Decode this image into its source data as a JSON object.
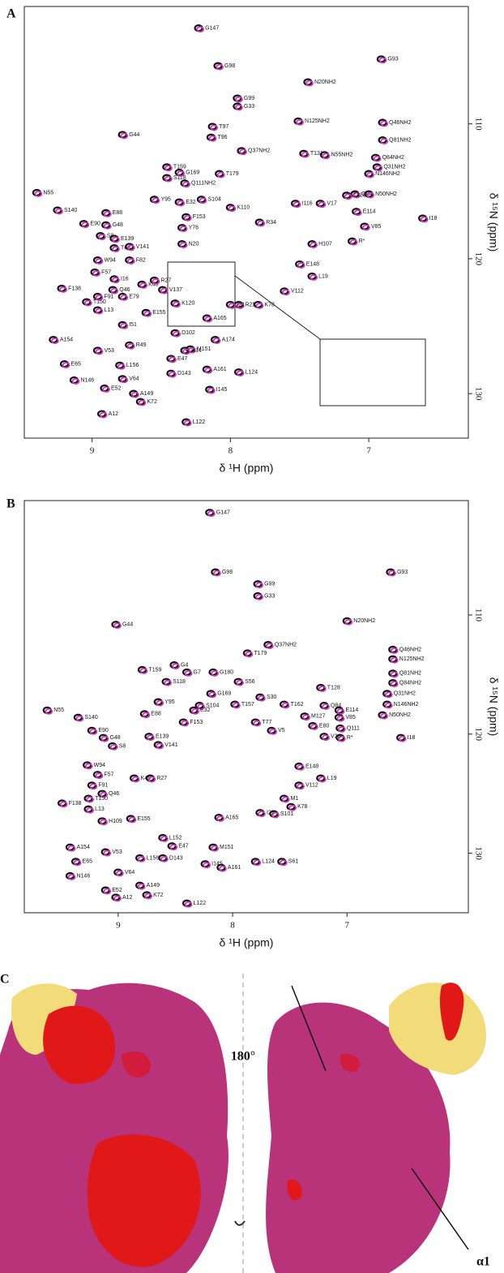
{
  "chart_data": [
    {
      "type": "scatter",
      "panel": "A",
      "x_label": "δ ¹H (ppm)",
      "y_label": "δ ¹⁵N (ppm)",
      "xlim": [
        9.49,
        6.28
      ],
      "ylim": [
        101.3,
        133.3
      ],
      "xticks": [
        9,
        8,
        7
      ],
      "yticks": [
        110,
        120,
        130
      ],
      "colors": [
        "#111111",
        "#cc33bb"
      ],
      "x": [
        8.23,
        8.09,
        6.91,
        7.95,
        7.95,
        8.78,
        9.25,
        9.4,
        9.06,
        8.9,
        8.94,
        8.96,
        8.98,
        9.22,
        9.04,
        8.96,
        9.28,
        9.2,
        9.13,
        8.96,
        8.91,
        8.93,
        8.65,
        8.7,
        8.43,
        8.15,
        8.32,
        7.94,
        8.17,
        8.29,
        8.17,
        7.12,
        6.61,
        7.03,
        7.09,
        7.1,
        7.16,
        8.46,
        8.46,
        7.92,
        7.47,
        6.9,
        6.9,
        7.44,
        7.51,
        7.32,
        6.95,
        6.94,
        7.0,
        7.0,
        7.41,
        7.61,
        7.8,
        7.94,
        8.0,
        7.5,
        7.41,
        7.79,
        7.53,
        7.35,
        8.84,
        8.35,
        8.32,
        8.35,
        8.0,
        8.21,
        8.33,
        8.37,
        8.08,
        8.14,
        8.13,
        8.43,
        8.33,
        8.11,
        8.4,
        8.61,
        8.8,
        8.78,
        8.78,
        8.73,
        8.49,
        8.4,
        8.73,
        8.84,
        8.85,
        8.78,
        8.64,
        8.55,
        8.96,
        8.84,
        8.73,
        8.9,
        8.55,
        8.37
      ],
      "values": [
        102.9,
        105.7,
        105.2,
        108.1,
        108.7,
        110.8,
        116.4,
        115.1,
        117.4,
        117.5,
        118.3,
        120.1,
        121.0,
        122.2,
        123.2,
        123.8,
        126.0,
        127.8,
        129.0,
        126.8,
        129.6,
        131.5,
        130.6,
        130.0,
        128.5,
        129.7,
        132.1,
        128.4,
        128.2,
        126.7,
        124.4,
        118.7,
        117.0,
        117.6,
        116.5,
        115.2,
        115.3,
        113.2,
        114.0,
        112.0,
        112.2,
        109.9,
        111.2,
        106.9,
        109.8,
        112.3,
        112.5,
        113.2,
        113.7,
        115.2,
        121.3,
        122.4,
        123.4,
        123.4,
        123.4,
        120.4,
        118.9,
        117.3,
        115.9,
        115.9,
        118.5,
        118.9,
        116.9,
        117.7,
        116.2,
        115.6,
        114.4,
        113.6,
        113.7,
        111.0,
        110.2,
        127.4,
        126.8,
        126.0,
        125.5,
        124.0,
        127.9,
        128.9,
        124.9,
        126.4,
        122.3,
        123.3,
        120.1,
        121.5,
        122.3,
        122.8,
        121.9,
        121.6,
        122.8,
        119.2,
        119.1,
        116.6,
        115.6,
        115.8
      ],
      "point_labels": [
        "G147",
        "G98",
        "G93",
        "G99",
        "G33",
        "G44",
        "S140",
        "N55",
        "E90",
        "G48",
        "S8",
        "W94",
        "F57",
        "F138",
        "T150",
        "L13",
        "A154",
        "E65",
        "N146",
        "V53",
        "E52",
        "A12",
        "K72",
        "A149",
        "D143",
        "I145",
        "L122",
        "L124",
        "A161",
        "M151",
        "A165",
        "R*",
        "I18",
        "V85",
        "E114",
        "Q84",
        "T128",
        "T159",
        "S118",
        "Q37NH2",
        "T131",
        "Q46NH2",
        "Q81NH2",
        "N20NH2",
        "N125NH2",
        "N55NH2",
        "Q84NH2",
        "Q31NH2",
        "N146NH2",
        "N50NH2",
        "L19",
        "V112",
        "K78",
        "R29",
        "I21",
        "E148",
        "H107",
        "R34",
        "I116",
        "V17",
        "E139",
        "N20",
        "F153",
        "Y76",
        "K110",
        "S104",
        "Q111NH2",
        "G169",
        "T179",
        "T96",
        "T97",
        "E47",
        "H14",
        "A174",
        "D102",
        "E155",
        "L156",
        "V64",
        "I51",
        "R49",
        "V137",
        "K120",
        "F82",
        "I16",
        "Q46",
        "E79",
        "K45",
        "R27",
        "F91",
        "T63",
        "V141",
        "E88",
        "Y95",
        "E32"
      ]
    },
    {
      "type": "scatter",
      "panel": "B",
      "x_label": "δ ¹H (ppm)",
      "y_label": "δ ¹⁵N (ppm)",
      "xlim": [
        9.82,
        5.94
      ],
      "ylim": [
        100.4,
        135.0
      ],
      "xticks": [
        9,
        8,
        7
      ],
      "yticks": [
        110,
        120,
        130
      ],
      "colors": [
        "#111111",
        "#cc33bb"
      ],
      "x": [
        8.2,
        8.15,
        6.62,
        7.78,
        7.78,
        7.0,
        9.02,
        6.6,
        6.6,
        7.69,
        6.6,
        6.6,
        6.65,
        6.65,
        6.69,
        7.87,
        8.79,
        8.58,
        9.62,
        9.35,
        9.23,
        9.13,
        9.05,
        8.77,
        8.73,
        9.27,
        9.18,
        9.49,
        9.26,
        9.26,
        9.14,
        9.42,
        9.37,
        9.11,
        9.42,
        9.11,
        8.81,
        9.02,
        8.75,
        8.4,
        8.24,
        8.1,
        7.8,
        8.17,
        8.61,
        8.53,
        8.81,
        7.57,
        7.64,
        7.49,
        7.42,
        7.42,
        7.23,
        7.06,
        6.53,
        7.07,
        7.07,
        7.06,
        7.23,
        7.2,
        7.76,
        8.12,
        8.51,
        8.4,
        8.17,
        7.95,
        8.29,
        7.98,
        7.76,
        7.55,
        7.66,
        7.8,
        7.37,
        7.3,
        7.2,
        7.55,
        9.14,
        9.23,
        8.86,
        8.72,
        8.65,
        8.43,
        8.65,
        8.89,
        8.61,
        9.0,
        8.19,
        8.34
      ],
      "values": [
        101.4,
        106.4,
        106.4,
        107.4,
        108.4,
        110.5,
        110.8,
        112.9,
        113.7,
        112.5,
        114.9,
        115.7,
        116.6,
        117.5,
        118.4,
        113.2,
        114.6,
        115.6,
        118.0,
        118.6,
        119.7,
        120.3,
        121.0,
        118.3,
        120.2,
        122.6,
        123.4,
        125.8,
        125.4,
        126.3,
        127.3,
        129.5,
        130.7,
        129.9,
        131.9,
        133.1,
        132.7,
        133.7,
        133.5,
        134.2,
        130.9,
        131.2,
        130.7,
        129.5,
        130.4,
        129.4,
        130.4,
        130.7,
        126.7,
        126.1,
        124.3,
        122.7,
        123.7,
        120.3,
        120.3,
        118.6,
        118.0,
        119.5,
        116.1,
        117.6,
        126.6,
        127.0,
        114.2,
        114.8,
        114.8,
        115.6,
        117.6,
        117.5,
        116.9,
        117.5,
        119.7,
        119.0,
        118.5,
        119.3,
        120.2,
        125.4,
        125.0,
        124.3,
        123.7,
        123.7,
        117.3,
        119.0,
        120.9,
        127.1,
        128.7,
        131.6,
        116.6,
        118.0
      ],
      "point_labels": [
        "G147",
        "G98",
        "G93",
        "G99",
        "G33",
        "N20NH2",
        "G44",
        "Q46NH2",
        "N125NH2",
        "Q37NH2",
        "Q81NH2",
        "Q84NH2",
        "Q31NH2",
        "N146NH2",
        "N50NH2",
        "T179",
        "T159",
        "S118",
        "N55",
        "S140",
        "E90",
        "G48",
        "S8",
        "E88",
        "E139",
        "W94",
        "F57",
        "F138",
        "T150",
        "L13",
        "H109",
        "A154",
        "E65",
        "V53",
        "N146",
        "E52",
        "A149",
        "A12",
        "K72",
        "L122",
        "I145",
        "A161",
        "L124",
        "M151",
        "D143",
        "E47",
        "L156",
        "S61",
        "S101",
        "K78",
        "V112",
        "E148",
        "L19",
        "R*",
        "I18",
        "V85",
        "E114",
        "Q111",
        "T128",
        "Q84",
        "I21",
        "A165",
        "G4",
        "G7",
        "G180",
        "S56",
        "S104",
        "T157",
        "S30",
        "T162",
        "V5",
        "T77",
        "M127",
        "E80",
        "V38",
        "M1",
        "Q46",
        "F91",
        "K45",
        "R27",
        "Y95",
        "F153",
        "V141",
        "E155",
        "L152",
        "V64",
        "G169",
        "E32"
      ]
    }
  ],
  "panel_c": {
    "label": "C",
    "rotation": "180°",
    "annotation": "α1"
  }
}
